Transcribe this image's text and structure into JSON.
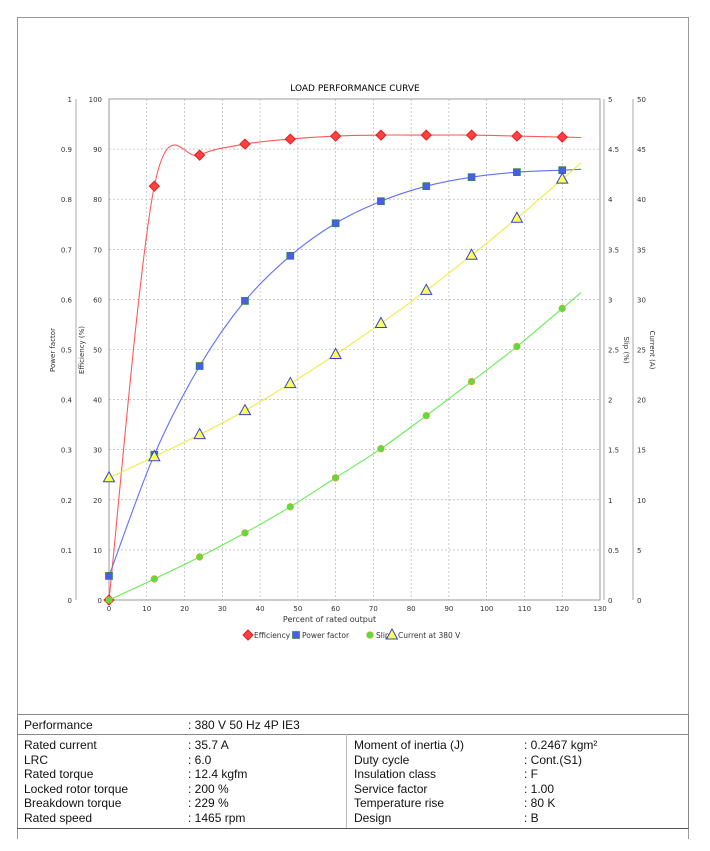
{
  "chart_data": {
    "type": "line",
    "title": "LOAD PERFORMANCE CURVE",
    "xlabel": "Percent of rated output",
    "xlim": [
      0,
      130
    ],
    "xticks": [
      0,
      10,
      20,
      30,
      40,
      50,
      60,
      70,
      80,
      90,
      100,
      110,
      120,
      130
    ],
    "grid": true,
    "legend_position": "bottom",
    "axes": {
      "power_factor": {
        "label": "Power factor",
        "side": "left-outer",
        "range": [
          0,
          1
        ],
        "ticks": [
          "0",
          "0.1",
          "0.2",
          "0.3",
          "0.4",
          "0.5",
          "0.6",
          "0.7",
          "0.8",
          "0.9",
          "1"
        ]
      },
      "efficiency": {
        "label": "Efficiency (%)",
        "side": "left-inner",
        "range": [
          0,
          100
        ],
        "ticks": [
          "0",
          "10",
          "20",
          "30",
          "40",
          "50",
          "60",
          "70",
          "80",
          "90",
          "100"
        ]
      },
      "slip": {
        "label": "Slip (%)",
        "side": "right-inner",
        "range": [
          0,
          5
        ],
        "ticks": [
          "0",
          "0.5",
          "1",
          "1.5",
          "2",
          "2.5",
          "3",
          "3.5",
          "4",
          "4.5",
          "5"
        ]
      },
      "current": {
        "label": "Current (A)",
        "side": "right-outer",
        "range": [
          0,
          50
        ],
        "ticks": [
          "0",
          "5",
          "10",
          "15",
          "20",
          "25",
          "30",
          "35",
          "40",
          "45",
          "50"
        ]
      }
    },
    "x": [
      0,
      12,
      24,
      36,
      48,
      60,
      72,
      84,
      96,
      108,
      120
    ],
    "series": [
      {
        "name": "Efficiency",
        "axis": "efficiency",
        "color": "#ff4040",
        "marker": "diamond",
        "values": [
          0,
          82.6,
          88.8,
          91.0,
          92.0,
          92.6,
          92.8,
          92.8,
          92.8,
          92.6,
          92.4
        ]
      },
      {
        "name": "Power factor",
        "axis": "power_factor",
        "color": "#4a5de8",
        "marker": "square",
        "values": [
          0.048,
          0.29,
          0.467,
          0.597,
          0.687,
          0.752,
          0.796,
          0.826,
          0.844,
          0.854,
          0.858
        ]
      },
      {
        "name": "Slip",
        "axis": "slip",
        "color": "#55e040",
        "marker": "circle",
        "values": [
          0,
          0.21,
          0.43,
          0.67,
          0.93,
          1.22,
          1.51,
          1.84,
          2.18,
          2.53,
          2.91
        ]
      },
      {
        "name": "Current at 380 V",
        "axis": "current",
        "color": "#ffff55",
        "marker": "triangle",
        "values": [
          12.2,
          14.3,
          16.5,
          18.9,
          21.6,
          24.5,
          27.6,
          30.9,
          34.4,
          38.1,
          42.0
        ]
      }
    ]
  },
  "table": {
    "performance": {
      "label": "Performance",
      "value": ": 380 V 50 Hz 4P IE3"
    },
    "left": [
      {
        "label": "Rated current",
        "value": ": 35.7 A"
      },
      {
        "label": "LRC",
        "value": ": 6.0"
      },
      {
        "label": "Rated torque",
        "value": ": 12.4 kgfm"
      },
      {
        "label": "Locked rotor torque",
        "value": ": 200 %"
      },
      {
        "label": "Breakdown torque",
        "value": ": 229 %"
      },
      {
        "label": "Rated speed",
        "value": ": 1465 rpm"
      }
    ],
    "right": [
      {
        "label": "Moment of inertia (J)",
        "value": ": 0.2467 kgm²"
      },
      {
        "label": "Duty cycle",
        "value": ": Cont.(S1)"
      },
      {
        "label": "Insulation class",
        "value": ": F"
      },
      {
        "label": "Service factor",
        "value": ": 1.00"
      },
      {
        "label": "Temperature rise",
        "value": ": 80 K"
      },
      {
        "label": "Design",
        "value": ": B"
      }
    ]
  }
}
